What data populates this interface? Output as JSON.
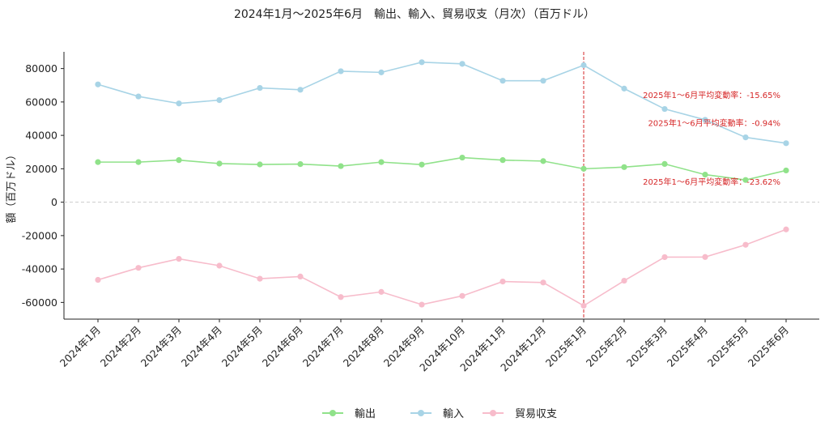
{
  "chart_data": {
    "type": "line",
    "title": "2024年1月～2025年6月　輸出、輸入、貿易収支（月次）（百万ドル）",
    "ylabel": "額（百万ドル）",
    "xlabel": "",
    "ylim": [
      -70000,
      90000
    ],
    "yticks": [
      -60000,
      -40000,
      -20000,
      0,
      20000,
      40000,
      60000,
      80000
    ],
    "categories": [
      "2024年1月",
      "2024年2月",
      "2024年3月",
      "2024年4月",
      "2024年5月",
      "2024年6月",
      "2024年7月",
      "2024年8月",
      "2024年9月",
      "2024年10月",
      "2024年11月",
      "2024年12月",
      "2025年1月",
      "2025年2月",
      "2025年3月",
      "2025年4月",
      "2025年5月",
      "2025年6月"
    ],
    "series": [
      {
        "name": "輸出",
        "color": "#90e28a",
        "values": [
          24000,
          24000,
          25200,
          23100,
          22600,
          22800,
          21600,
          24000,
          22500,
          26700,
          25200,
          24600,
          20000,
          21000,
          22900,
          16500,
          13300,
          19000
        ]
      },
      {
        "name": "輸入",
        "color": "#a8d4e6",
        "values": [
          70500,
          63300,
          59100,
          61100,
          68400,
          67300,
          78400,
          77700,
          83800,
          82800,
          72700,
          72700,
          82000,
          68000,
          55800,
          49300,
          38800,
          35300
        ]
      },
      {
        "name": "貿易収支",
        "color": "#f7bccb",
        "values": [
          -46500,
          -39300,
          -33900,
          -38000,
          -45800,
          -44500,
          -56800,
          -53700,
          -61300,
          -56100,
          -47500,
          -48100,
          -62000,
          -47000,
          -32900,
          -32800,
          -25500,
          -16300
        ]
      }
    ],
    "vline": {
      "category": "2025年1月",
      "color": "#d62728",
      "style": "dashed"
    },
    "hline": {
      "value": 0,
      "color": "#cccccc",
      "style": "dashed"
    },
    "annotations": [
      {
        "text": "2025年1～6月平均変動率：-15.65%",
        "series": "輸入"
      },
      {
        "text": "2025年1～6月平均変動率：-0.94%",
        "series": "輸出"
      },
      {
        "text": "2025年1～6月平均変動率：-23.62%",
        "series": "貿易収支"
      }
    ],
    "legend": "bottom-center",
    "grid": false
  }
}
